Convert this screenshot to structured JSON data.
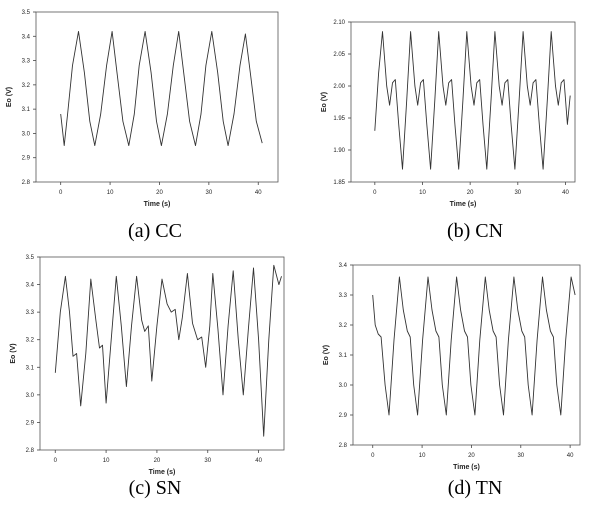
{
  "chart_data": [
    {
      "type": "line",
      "caption": "(a) CC",
      "xlabel": "Time (s)",
      "ylabel": "Eo (V)",
      "xlim": [
        -5,
        44
      ],
      "ylim": [
        2.8,
        3.5
      ],
      "xticks": [
        0,
        10,
        20,
        30,
        40
      ],
      "yticks": [
        2.8,
        2.9,
        3.0,
        3.1,
        3.2,
        3.3,
        3.4,
        3.5
      ],
      "ytick_labels": [
        "2.8",
        "2.9",
        "3.0",
        "3.1",
        "3.2",
        "3.3",
        "3.4",
        "3.5"
      ],
      "series": [
        {
          "x": [
            0.0,
            0.7,
            1.4,
            2.4,
            3.6,
            4.8,
            5.9,
            6.9,
            8.1,
            9.3,
            10.4,
            11.4,
            12.6,
            13.8,
            14.9,
            15.9,
            17.1,
            18.3,
            19.4,
            20.4,
            21.6,
            22.8,
            23.9,
            24.9,
            26.1,
            27.3,
            28.4,
            29.4,
            30.6,
            31.8,
            32.9,
            33.9,
            35.1,
            36.3,
            37.4,
            38.4,
            39.6,
            40.8
          ],
          "y": [
            3.08,
            2.95,
            3.08,
            3.28,
            3.42,
            3.25,
            3.05,
            2.95,
            3.08,
            3.28,
            3.42,
            3.25,
            3.05,
            2.95,
            3.08,
            3.28,
            3.42,
            3.25,
            3.05,
            2.95,
            3.08,
            3.28,
            3.42,
            3.25,
            3.05,
            2.95,
            3.08,
            3.28,
            3.42,
            3.25,
            3.05,
            2.95,
            3.08,
            3.28,
            3.41,
            3.25,
            3.05,
            2.96
          ]
        }
      ]
    },
    {
      "type": "line",
      "caption": "(b) CN",
      "xlabel": "Time (s)",
      "ylabel": "Eo (V)",
      "xlim": [
        -5,
        42
      ],
      "ylim": [
        1.85,
        2.1
      ],
      "xticks": [
        0,
        10,
        20,
        30,
        40
      ],
      "yticks": [
        1.85,
        1.9,
        1.95,
        2.0,
        2.05,
        2.1
      ],
      "ytick_labels": [
        "1.85",
        "1.90",
        "1.95",
        "2.00",
        "2.05",
        "2.10"
      ],
      "series": [
        {
          "x": [
            0.0,
            0.8,
            1.6,
            2.5,
            3.1,
            3.7,
            4.3,
            5.0,
            5.8,
            6.7,
            7.5,
            8.4,
            9.0,
            9.6,
            10.2,
            10.9,
            11.7,
            12.6,
            13.4,
            14.3,
            14.9,
            15.5,
            16.1,
            16.8,
            17.6,
            18.5,
            19.3,
            20.2,
            20.8,
            21.4,
            22.0,
            22.7,
            23.5,
            24.4,
            25.2,
            26.1,
            26.7,
            27.3,
            27.9,
            28.6,
            29.4,
            30.3,
            31.1,
            32.0,
            32.6,
            33.2,
            33.8,
            34.5,
            35.3,
            36.2,
            37.0,
            37.9,
            38.5,
            39.1,
            39.7,
            40.4,
            41.0
          ],
          "y": [
            1.93,
            2.02,
            2.085,
            2.0,
            1.97,
            2.005,
            2.01,
            1.94,
            1.87,
            1.98,
            2.085,
            2.0,
            1.97,
            2.005,
            2.01,
            1.94,
            1.87,
            1.98,
            2.085,
            2.0,
            1.97,
            2.005,
            2.01,
            1.94,
            1.87,
            1.98,
            2.085,
            2.0,
            1.97,
            2.005,
            2.01,
            1.94,
            1.87,
            1.98,
            2.085,
            2.0,
            1.97,
            2.005,
            2.01,
            1.94,
            1.87,
            1.98,
            2.085,
            2.0,
            1.97,
            2.005,
            2.01,
            1.94,
            1.87,
            1.98,
            2.085,
            2.0,
            1.97,
            2.005,
            2.01,
            1.94,
            1.985
          ]
        }
      ]
    },
    {
      "type": "line",
      "caption": "(c) SN",
      "xlabel": "Time (s)",
      "ylabel": "Eo (V)",
      "xlim": [
        -3,
        45
      ],
      "ylim": [
        2.8,
        3.5
      ],
      "xticks": [
        0,
        10,
        20,
        30,
        40
      ],
      "yticks": [
        2.8,
        2.9,
        3.0,
        3.1,
        3.2,
        3.3,
        3.4,
        3.5
      ],
      "ytick_labels": [
        "2.8",
        "2.9",
        "3.0",
        "3.1",
        "3.2",
        "3.3",
        "3.4",
        "3.5"
      ],
      "series": [
        {
          "x": [
            0.0,
            1.0,
            2.0,
            2.8,
            3.5,
            4.2,
            5.0,
            6.0,
            7.0,
            8.0,
            8.7,
            9.3,
            10.0,
            11.0,
            12.0,
            13.0,
            14.0,
            15.0,
            16.0,
            17.0,
            17.6,
            18.3,
            19.0,
            20.0,
            21.0,
            22.0,
            22.8,
            23.6,
            24.3,
            25.0,
            26.0,
            27.0,
            28.0,
            28.8,
            29.6,
            30.4,
            31.0,
            32.0,
            33.0,
            34.0,
            35.0,
            36.0,
            37.0,
            38.0,
            39.0,
            40.0,
            41.0,
            42.0,
            43.0,
            44.0,
            44.5
          ],
          "y": [
            3.08,
            3.3,
            3.43,
            3.3,
            3.14,
            3.15,
            2.96,
            3.15,
            3.42,
            3.27,
            3.17,
            3.18,
            2.97,
            3.2,
            3.43,
            3.25,
            3.03,
            3.25,
            3.43,
            3.27,
            3.23,
            3.25,
            3.05,
            3.25,
            3.42,
            3.33,
            3.3,
            3.31,
            3.2,
            3.28,
            3.44,
            3.26,
            3.2,
            3.21,
            3.1,
            3.25,
            3.44,
            3.24,
            3.0,
            3.25,
            3.45,
            3.2,
            3.0,
            3.24,
            3.46,
            3.2,
            2.85,
            3.2,
            3.47,
            3.4,
            3.43
          ]
        }
      ]
    },
    {
      "type": "line",
      "caption": "(d) TN",
      "xlabel": "Time (s)",
      "ylabel": "Eo (V)",
      "xlim": [
        -4,
        42
      ],
      "ylim": [
        2.8,
        3.4
      ],
      "xticks": [
        0,
        10,
        20,
        30,
        40
      ],
      "yticks": [
        2.8,
        2.9,
        3.0,
        3.1,
        3.2,
        3.3,
        3.4
      ],
      "ytick_labels": [
        "2.8",
        "2.9",
        "3.0",
        "3.1",
        "3.2",
        "3.3",
        "3.4"
      ],
      "series": [
        {
          "x": [
            0.0,
            0.5,
            1.1,
            1.7,
            2.5,
            3.3,
            4.3,
            5.4,
            6.2,
            7.0,
            7.6,
            8.3,
            9.1,
            10.1,
            11.2,
            12.0,
            12.8,
            13.4,
            14.1,
            14.9,
            15.9,
            17.0,
            17.8,
            18.6,
            19.2,
            19.9,
            20.7,
            21.7,
            22.8,
            23.6,
            24.4,
            25.0,
            25.7,
            26.5,
            27.5,
            28.6,
            29.4,
            30.2,
            30.8,
            31.5,
            32.3,
            33.3,
            34.4,
            35.2,
            36.0,
            36.6,
            37.3,
            38.1,
            39.1,
            40.2,
            41.0
          ],
          "y": [
            3.3,
            3.2,
            3.17,
            3.16,
            3.0,
            2.9,
            3.15,
            3.36,
            3.25,
            3.18,
            3.16,
            3.0,
            2.9,
            3.15,
            3.36,
            3.25,
            3.18,
            3.16,
            3.0,
            2.9,
            3.15,
            3.36,
            3.25,
            3.18,
            3.16,
            3.0,
            2.9,
            3.15,
            3.36,
            3.25,
            3.18,
            3.16,
            3.0,
            2.9,
            3.15,
            3.36,
            3.25,
            3.18,
            3.16,
            3.0,
            2.9,
            3.15,
            3.36,
            3.25,
            3.18,
            3.16,
            3.0,
            2.9,
            3.15,
            3.36,
            3.3
          ]
        }
      ]
    }
  ]
}
